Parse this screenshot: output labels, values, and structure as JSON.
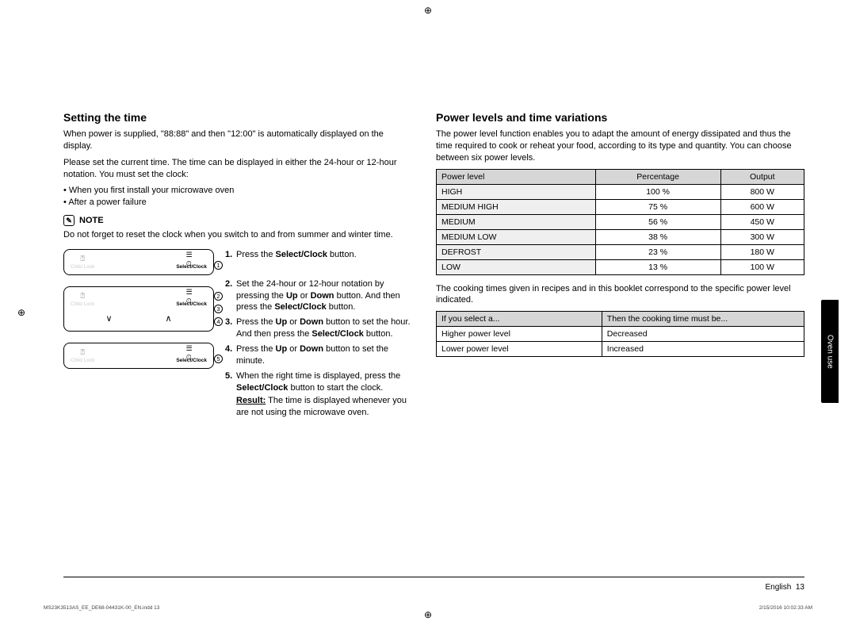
{
  "section_tab": "Oven use",
  "crop_mark": "⊕",
  "left": {
    "heading": "Setting the time",
    "para1": "When power is supplied, \"88:88\" and then \"12:00\" is automatically displayed on the display.",
    "para2": "Please set the current time. The time can be displayed in either the 24-hour or 12-hour notation. You must set the clock:",
    "bullets": [
      "When you first install your microwave oven",
      "After a power failure"
    ],
    "note_label": "NOTE",
    "note_body": "Do not forget to reset the clock when you switch to and from summer and winter time.",
    "panel_labels": {
      "child_lock": "Child Lock",
      "select_clock": "Select/Clock"
    },
    "callouts": [
      "1",
      "2",
      "3",
      "4",
      "5"
    ],
    "steps": [
      "Press the <b>Select/Clock</b> button.",
      "Set the 24-hour or 12-hour notation by pressing the <b>Up</b> or <b>Down</b> button. And then press the <b>Select/Clock</b> button.",
      "Press the <b>Up</b> or <b>Down</b> button to set the hour. And then press the <b>Select/Clock</b> button.",
      "Press the <b>Up</b> or <b>Down</b> button to set the minute.",
      "When the right time is displayed, press the <b>Select/Clock</b> button to start the clock."
    ],
    "result_label": "Result:",
    "result_text": "The time is displayed whenever you are not using the microwave oven."
  },
  "right": {
    "heading": "Power levels and time variations",
    "para1": "The power level function enables you to adapt the amount of energy dissipated and thus the time required to cook or reheat your food, according to its type and quantity. You can choose between six power levels.",
    "power_table": {
      "headers": [
        "Power level",
        "Percentage",
        "Output"
      ],
      "rows": [
        [
          "HIGH",
          "100 %",
          "800 W"
        ],
        [
          "MEDIUM HIGH",
          "75 %",
          "600 W"
        ],
        [
          "MEDIUM",
          "56 %",
          "450 W"
        ],
        [
          "MEDIUM LOW",
          "38 %",
          "300 W"
        ],
        [
          "DEFROST",
          "23 %",
          "180 W"
        ],
        [
          "LOW",
          "13 %",
          "100 W"
        ]
      ]
    },
    "para2": "The cooking times given in recipes and in this booklet correspond to the specific power level indicated.",
    "adjust_table": {
      "headers": [
        "If you select a...",
        "Then the cooking time must be..."
      ],
      "rows": [
        [
          "Higher power level",
          "Decreased"
        ],
        [
          "Lower power level",
          "Increased"
        ]
      ]
    }
  },
  "footer": {
    "language": "English",
    "page": "13",
    "print_left": "MS23K3513AS_EE_DE68-04431K-00_EN.indd   13",
    "print_right": "2/15/2016   10:02:33 AM"
  },
  "colors": {
    "tab_bg": "#000000",
    "tab_text": "#ffffff",
    "table_header_bg": "#d6d6d6",
    "table_labelcol_bg": "#efefef",
    "border": "#000000"
  }
}
